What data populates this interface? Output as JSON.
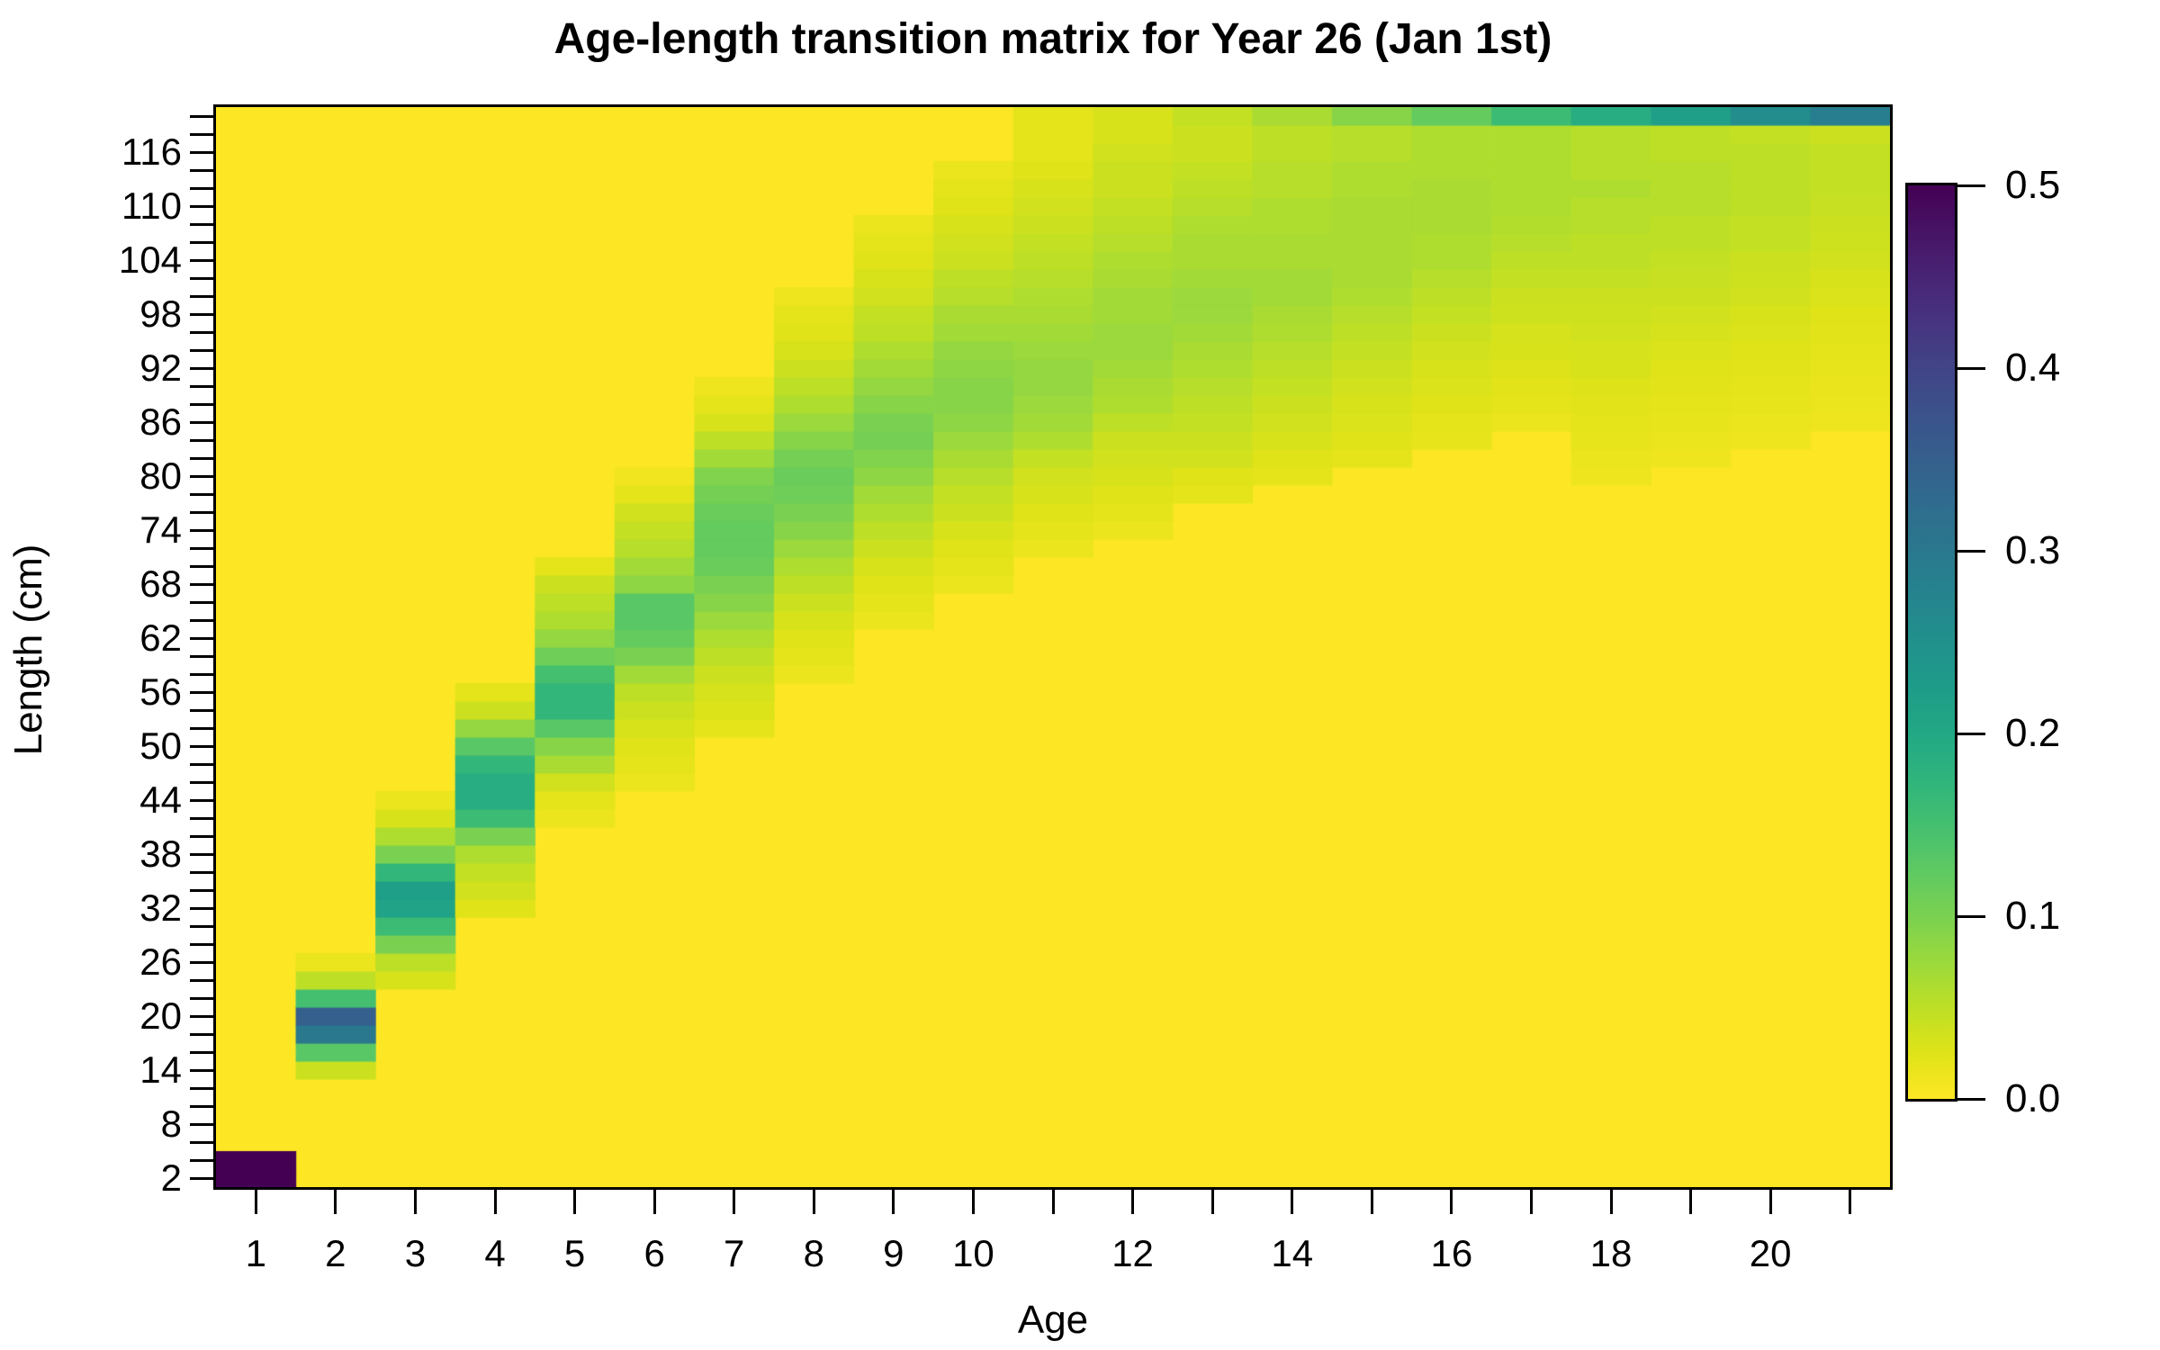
{
  "chart": {
    "title": "Age-length transition matrix for Year 26 (Jan 1st)",
    "x_axis": {
      "label": "Age",
      "range": [
        0.5,
        21.5
      ],
      "tick_ages": [
        1,
        2,
        3,
        4,
        5,
        6,
        7,
        8,
        9,
        10,
        11,
        12,
        13,
        14,
        15,
        16,
        17,
        18,
        19,
        20,
        21
      ],
      "labeled_ticks": [
        1,
        2,
        3,
        4,
        5,
        6,
        7,
        8,
        9,
        10,
        12,
        14,
        16,
        18,
        20
      ]
    },
    "y_axis": {
      "label": "Length (cm)",
      "range": [
        1,
        121
      ],
      "bin_cm": 2,
      "tick_min": 2,
      "tick_max": 120,
      "tick_step": 2,
      "labeled_ticks": [
        2,
        8,
        14,
        20,
        26,
        32,
        38,
        44,
        50,
        56,
        62,
        68,
        74,
        80,
        86,
        92,
        98,
        104,
        110,
        116
      ]
    },
    "colorbar": {
      "min": 0.0,
      "max": 0.5,
      "tick_values": [
        0.0,
        0.1,
        0.2,
        0.3,
        0.4,
        0.5
      ],
      "tick_labels": [
        "0.0",
        "0.1",
        "0.2",
        "0.3",
        "0.4",
        "0.5"
      ],
      "colormap": "viridis-reversed",
      "color_at_min": "#fde725",
      "color_at_max": "#440154"
    }
  },
  "chart_data": {
    "type": "heatmap",
    "title": "Age-length transition matrix for Year 26 (Jan 1st)",
    "xlabel": "Age",
    "ylabel": "Length (cm)",
    "value_min": 0.0,
    "value_max": 0.5,
    "ages": [
      1,
      2,
      3,
      4,
      5,
      6,
      7,
      8,
      9,
      10,
      11,
      12,
      13,
      14,
      15,
      16,
      17,
      18,
      19,
      20,
      21
    ],
    "length_bin_cm": 2,
    "length_min": 2,
    "length_max": 120,
    "background_value": 0.0,
    "columns": [
      {
        "age": 1,
        "from": 2,
        "values": [
          0.5,
          0.5
        ]
      },
      {
        "age": 2,
        "from": 14,
        "values": [
          0.04,
          0.13,
          0.3,
          0.35,
          0.15,
          0.05,
          0.015
        ]
      },
      {
        "age": 3,
        "from": 24,
        "values": [
          0.03,
          0.05,
          0.1,
          0.16,
          0.21,
          0.22,
          0.17,
          0.1,
          0.06,
          0.03,
          0.015
        ]
      },
      {
        "age": 4,
        "from": 32,
        "values": [
          0.025,
          0.035,
          0.045,
          0.06,
          0.1,
          0.16,
          0.19,
          0.19,
          0.17,
          0.13,
          0.08,
          0.04,
          0.02
        ]
      },
      {
        "age": 5,
        "from": 42,
        "values": [
          0.015,
          0.02,
          0.035,
          0.065,
          0.09,
          0.13,
          0.17,
          0.17,
          0.15,
          0.11,
          0.08,
          0.06,
          0.05,
          0.04,
          0.02
        ]
      },
      {
        "age": 6,
        "from": 46,
        "values": [
          0.015,
          0.02,
          0.025,
          0.03,
          0.04,
          0.05,
          0.07,
          0.1,
          0.12,
          0.13,
          0.13,
          0.085,
          0.07,
          0.055,
          0.045,
          0.035,
          0.02,
          0.01
        ]
      },
      {
        "age": 7,
        "from": 52,
        "values": [
          0.02,
          0.027,
          0.032,
          0.04,
          0.05,
          0.06,
          0.075,
          0.09,
          0.1,
          0.115,
          0.12,
          0.12,
          0.115,
          0.105,
          0.095,
          0.07,
          0.05,
          0.03,
          0.02,
          0.012
        ]
      },
      {
        "age": 8,
        "from": 58,
        "values": [
          0.015,
          0.02,
          0.025,
          0.03,
          0.04,
          0.05,
          0.06,
          0.075,
          0.09,
          0.1,
          0.11,
          0.115,
          0.105,
          0.09,
          0.075,
          0.06,
          0.05,
          0.04,
          0.03,
          0.025,
          0.02,
          0.012
        ]
      },
      {
        "age": 9,
        "from": 64,
        "values": [
          0.015,
          0.02,
          0.025,
          0.03,
          0.04,
          0.05,
          0.06,
          0.07,
          0.085,
          0.095,
          0.105,
          0.1,
          0.09,
          0.08,
          0.07,
          0.06,
          0.05,
          0.045,
          0.035,
          0.03,
          0.025,
          0.02,
          0.015
        ]
      },
      {
        "age": 10,
        "from": 68,
        "values": [
          0.015,
          0.02,
          0.025,
          0.03,
          0.04,
          0.045,
          0.055,
          0.065,
          0.075,
          0.085,
          0.09,
          0.09,
          0.085,
          0.08,
          0.07,
          0.065,
          0.055,
          0.05,
          0.04,
          0.035,
          0.03,
          0.025,
          0.02,
          0.015
        ]
      },
      {
        "age": 11,
        "from": 72,
        "values": [
          0.015,
          0.02,
          0.025,
          0.03,
          0.035,
          0.045,
          0.06,
          0.07,
          0.075,
          0.08,
          0.08,
          0.075,
          0.07,
          0.065,
          0.06,
          0.055,
          0.05,
          0.045,
          0.04,
          0.035,
          0.03,
          0.025,
          0.02,
          0.02,
          0.02
        ]
      },
      {
        "age": 12,
        "from": 74,
        "values": [
          0.015,
          0.02,
          0.025,
          0.03,
          0.035,
          0.04,
          0.05,
          0.06,
          0.065,
          0.07,
          0.075,
          0.075,
          0.07,
          0.07,
          0.065,
          0.06,
          0.055,
          0.05,
          0.045,
          0.04,
          0.04,
          0.035,
          0.03,
          0.03
        ]
      },
      {
        "age": 13,
        "from": 78,
        "values": [
          0.02,
          0.025,
          0.035,
          0.04,
          0.045,
          0.05,
          0.055,
          0.06,
          0.065,
          0.07,
          0.075,
          0.075,
          0.07,
          0.065,
          0.065,
          0.06,
          0.055,
          0.05,
          0.045,
          0.04,
          0.04,
          0.045
        ]
      },
      {
        "age": 14,
        "from": 80,
        "values": [
          0.02,
          0.025,
          0.03,
          0.035,
          0.04,
          0.045,
          0.05,
          0.055,
          0.06,
          0.065,
          0.07,
          0.07,
          0.065,
          0.065,
          0.06,
          0.06,
          0.055,
          0.055,
          0.05,
          0.05,
          0.065
        ]
      },
      {
        "age": 15,
        "from": 82,
        "values": [
          0.02,
          0.025,
          0.028,
          0.03,
          0.035,
          0.04,
          0.045,
          0.05,
          0.055,
          0.06,
          0.065,
          0.065,
          0.065,
          0.065,
          0.065,
          0.06,
          0.06,
          0.055,
          0.055,
          0.09
        ]
      },
      {
        "age": 16,
        "from": 84,
        "values": [
          0.018,
          0.02,
          0.025,
          0.028,
          0.03,
          0.035,
          0.04,
          0.045,
          0.05,
          0.055,
          0.06,
          0.06,
          0.065,
          0.065,
          0.065,
          0.06,
          0.06,
          0.06,
          0.12
        ]
      },
      {
        "age": 17,
        "from": 86,
        "values": [
          0.015,
          0.02,
          0.022,
          0.026,
          0.03,
          0.032,
          0.038,
          0.04,
          0.045,
          0.05,
          0.055,
          0.058,
          0.06,
          0.06,
          0.06,
          0.06,
          0.06,
          0.16
        ]
      },
      {
        "age": 18,
        "from": 80,
        "values": [
          0.012,
          0.015,
          0.018,
          0.02,
          0.022,
          0.026,
          0.03,
          0.032,
          0.035,
          0.038,
          0.04,
          0.045,
          0.05,
          0.05,
          0.055,
          0.055,
          0.06,
          0.055,
          0.055,
          0.055,
          0.19
        ]
      },
      {
        "age": 19,
        "from": 82,
        "values": [
          0.012,
          0.015,
          0.018,
          0.02,
          0.022,
          0.025,
          0.028,
          0.032,
          0.035,
          0.04,
          0.042,
          0.045,
          0.05,
          0.05,
          0.055,
          0.055,
          0.055,
          0.05,
          0.05,
          0.22
        ]
      },
      {
        "age": 20,
        "from": 84,
        "values": [
          0.012,
          0.015,
          0.018,
          0.02,
          0.022,
          0.025,
          0.028,
          0.03,
          0.035,
          0.038,
          0.04,
          0.045,
          0.045,
          0.05,
          0.05,
          0.05,
          0.05,
          0.045,
          0.26
        ]
      },
      {
        "age": 21,
        "from": 86,
        "values": [
          0.012,
          0.015,
          0.016,
          0.018,
          0.02,
          0.022,
          0.025,
          0.028,
          0.03,
          0.035,
          0.038,
          0.04,
          0.042,
          0.045,
          0.045,
          0.045,
          0.04,
          0.29
        ]
      }
    ]
  }
}
